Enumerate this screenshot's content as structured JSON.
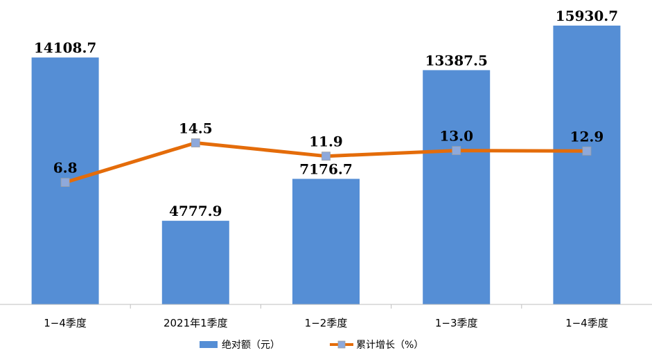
{
  "chart_data": {
    "type": "bar",
    "categories": [
      "1−4季度",
      "2021年1季度",
      "1−2季度",
      "1−3季度",
      "1−4季度"
    ],
    "series": [
      {
        "name": "绝对额（元）",
        "type": "bar",
        "axis": "left",
        "values": [
          14108.7,
          4777.9,
          7176.7,
          13387.5,
          15930.7
        ],
        "color": "#558ED5"
      },
      {
        "name": "累计增长（%）",
        "type": "line",
        "axis": "right",
        "values": [
          6.8,
          14.5,
          11.9,
          13.0,
          12.9
        ],
        "color": "#E46C0A",
        "marker_color": "#8EA9DB"
      }
    ],
    "bar_labels": [
      "14108.7",
      "4777.9",
      "7176.7",
      "13387.5",
      "15930.7"
    ],
    "line_labels": [
      "6.8",
      "14.5",
      "11.9",
      "13.0",
      "12.9"
    ],
    "ylim_left": [
      0,
      17000
    ],
    "ylim_right": [
      -17,
      41
    ],
    "grid": false,
    "legend_position": "bottom"
  }
}
